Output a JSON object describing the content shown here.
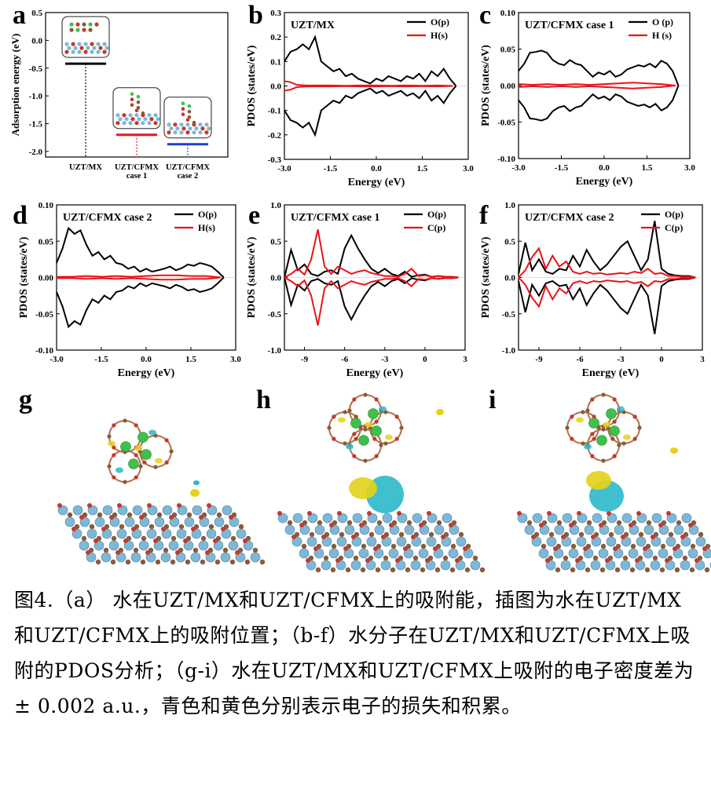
{
  "caption": "图4.（a） 水在UZT/MX和UZT/CFMX上的吸附能，插图为水在UZT/MX和UZT/CFMX上的吸附位置；（b-f）水分子在UZT/MX和UZT/CFMX上吸附的PDOS分析；（g-i）水在UZT/MX和UZT/CFMX上吸附的电子密度差为± 0.002 a.u.，青色和黄色分别表示电子的损失和积累。",
  "colors": {
    "black": "#000000",
    "red": "#e8141a",
    "blue": "#1f3fd1",
    "cyan": "#2bb8c9",
    "yellow": "#e6d21a"
  },
  "panels": {
    "a": "a",
    "b": "b",
    "c": "c",
    "d": "d",
    "e": "e",
    "f": "f",
    "g": "g",
    "h": "h",
    "i": "i"
  },
  "chart_data": [
    {
      "id": "a",
      "type": "scatter",
      "title": "",
      "ylabel": "Adsorption energy (eV)",
      "ylim": [
        -2.1,
        0.5
      ],
      "yticks": [
        "0.5",
        "0.0",
        "-0.5",
        "-1.0",
        "-1.5",
        "-2.0"
      ],
      "categories": [
        "UZT/MX",
        "UZT/CFMX case 1",
        "UZT/CFMX case 2"
      ],
      "category_lines": [
        [
          "UZT/MX"
        ],
        [
          "UZT/CFMX",
          "case 1"
        ],
        [
          "UZT/CFMX",
          "case 2"
        ]
      ],
      "values": [
        -0.42,
        -1.7,
        -1.87
      ],
      "colors": [
        "#000000",
        "#e8141a",
        "#1f3fd1"
      ]
    },
    {
      "id": "b",
      "type": "line",
      "title": "UZT/MX",
      "xlabel": "Energy (eV)",
      "ylabel": "PDOS (states/eV)",
      "xlim": [
        -3.0,
        3.0
      ],
      "ylim": [
        -0.3,
        0.3
      ],
      "xticks": [
        "-3.0",
        "-1.5",
        "0.0",
        "1.5",
        "3.0"
      ],
      "yticks": [
        "0.3",
        "0.2",
        "0.1",
        "0.0",
        "-0.1",
        "-0.2",
        "-0.3"
      ],
      "mirror": true,
      "series": [
        {
          "name": "O(p)",
          "color": "#000000",
          "x": [
            -3.0,
            -2.8,
            -2.6,
            -2.4,
            -2.2,
            -2.0,
            -1.8,
            -1.6,
            -1.4,
            -1.2,
            -1.0,
            -0.8,
            -0.6,
            -0.4,
            -0.2,
            0.0,
            0.2,
            0.4,
            0.6,
            0.8,
            1.0,
            1.2,
            1.4,
            1.6,
            1.8,
            2.0,
            2.2,
            2.4,
            2.6
          ],
          "y": [
            0.1,
            0.14,
            0.15,
            0.17,
            0.15,
            0.2,
            0.1,
            0.08,
            0.06,
            0.07,
            0.04,
            0.05,
            0.03,
            0.02,
            0.01,
            0.03,
            0.02,
            0.04,
            0.03,
            0.02,
            0.04,
            0.03,
            0.05,
            0.02,
            0.06,
            0.04,
            0.07,
            0.03,
            0.0
          ]
        },
        {
          "name": "H(s)",
          "color": "#e8141a",
          "x": [
            -3.0,
            -2.8,
            -2.6,
            -2.4,
            -2.2,
            -2.0,
            -1.5,
            -1.0,
            -0.5,
            0.0,
            0.5,
            1.0,
            1.5,
            2.0,
            2.5
          ],
          "y": [
            0.02,
            0.015,
            0.005,
            0.003,
            0.002,
            0.002,
            0.002,
            0.001,
            0.002,
            0.002,
            0.001,
            0.002,
            0.001,
            0.002,
            0.0
          ]
        }
      ]
    },
    {
      "id": "c",
      "type": "line",
      "title": "UZT/CFMX case 1",
      "xlabel": "Energy (eV)",
      "ylabel": "PDOS (states/eV)",
      "xlim": [
        -3.0,
        3.0
      ],
      "ylim": [
        -0.1,
        0.1
      ],
      "xticks": [
        "-3.0",
        "-1.5",
        "0.0",
        "1.5",
        "3.0"
      ],
      "yticks": [
        "0.10",
        "0.05",
        "0.00",
        "-0.05",
        "-0.10"
      ],
      "mirror": true,
      "series": [
        {
          "name": "O (p)",
          "color": "#000000",
          "x": [
            -3.0,
            -2.8,
            -2.6,
            -2.4,
            -2.2,
            -2.0,
            -1.8,
            -1.6,
            -1.4,
            -1.2,
            -1.0,
            -0.8,
            -0.6,
            -0.4,
            -0.2,
            0.0,
            0.2,
            0.4,
            0.6,
            0.8,
            1.0,
            1.2,
            1.4,
            1.6,
            1.8,
            2.0,
            2.2,
            2.4,
            2.6
          ],
          "y": [
            0.02,
            0.03,
            0.045,
            0.046,
            0.048,
            0.045,
            0.035,
            0.03,
            0.028,
            0.035,
            0.03,
            0.028,
            0.02,
            0.012,
            0.018,
            0.015,
            0.02,
            0.012,
            0.015,
            0.022,
            0.025,
            0.028,
            0.026,
            0.03,
            0.025,
            0.034,
            0.03,
            0.02,
            0.0
          ]
        },
        {
          "name": "H (s)",
          "color": "#e8141a",
          "x": [
            -3.0,
            -2.5,
            -2.0,
            -1.5,
            -1.0,
            -0.5,
            0.0,
            0.5,
            1.0,
            1.5,
            2.0,
            2.5
          ],
          "y": [
            0.002,
            0.001,
            0.002,
            0.001,
            0.002,
            0.001,
            0.002,
            0.003,
            0.004,
            0.003,
            0.002,
            0.0
          ]
        }
      ]
    },
    {
      "id": "d",
      "type": "line",
      "title": "UZT/CFMX case 2",
      "xlabel": "Energy (eV)",
      "ylabel": "PDOS (states/eV)",
      "xlim": [
        -3.0,
        3.0
      ],
      "ylim": [
        -0.1,
        0.1
      ],
      "xticks": [
        "-3.0",
        "-1.5",
        "0.0",
        "1.5",
        "3.0"
      ],
      "yticks": [
        "0.10",
        "0.05",
        "0.00",
        "-0.05",
        "-0.10"
      ],
      "mirror": true,
      "series": [
        {
          "name": "O(p)",
          "color": "#000000",
          "x": [
            -3.0,
            -2.8,
            -2.6,
            -2.4,
            -2.2,
            -2.0,
            -1.8,
            -1.6,
            -1.4,
            -1.2,
            -1.0,
            -0.8,
            -0.6,
            -0.4,
            -0.2,
            0.0,
            0.2,
            0.4,
            0.6,
            0.8,
            1.0,
            1.2,
            1.4,
            1.6,
            1.8,
            2.0,
            2.2,
            2.4,
            2.6
          ],
          "y": [
            0.02,
            0.04,
            0.068,
            0.06,
            0.065,
            0.045,
            0.03,
            0.035,
            0.025,
            0.03,
            0.02,
            0.018,
            0.012,
            0.015,
            0.008,
            0.012,
            0.008,
            0.01,
            0.012,
            0.015,
            0.01,
            0.013,
            0.018,
            0.016,
            0.02,
            0.018,
            0.015,
            0.008,
            0.0
          ]
        },
        {
          "name": "H(s)",
          "color": "#e8141a",
          "x": [
            -3.0,
            -2.5,
            -2.0,
            -1.5,
            -1.0,
            -0.5,
            0.0,
            0.5,
            1.0,
            1.5,
            2.0,
            2.5
          ],
          "y": [
            0.001,
            0.001,
            0.002,
            0.001,
            0.002,
            0.001,
            0.002,
            0.003,
            0.003,
            0.002,
            0.002,
            0.0
          ]
        }
      ]
    },
    {
      "id": "e",
      "type": "line",
      "title": "UZT/CFMX case 1",
      "xlabel": "Energy (eV)",
      "ylabel": "PDOS (states/eV)",
      "xlim": [
        -10.5,
        3.0
      ],
      "ylim": [
        -1.0,
        1.0
      ],
      "xticks": [
        "-9",
        "-6",
        "-3",
        "0",
        "3"
      ],
      "yticks": [
        "1.0",
        "0.5",
        "0.0",
        "-0.5",
        "-1.0"
      ],
      "mirror": true,
      "series": [
        {
          "name": "O(p)",
          "color": "#000000",
          "x": [
            -10.5,
            -10.0,
            -9.5,
            -9.0,
            -8.5,
            -8.0,
            -7.5,
            -7.0,
            -6.5,
            -6.0,
            -5.5,
            -5.0,
            -4.5,
            -4.0,
            -3.5,
            -3.0,
            -2.5,
            -2.0,
            -1.5,
            -1.0,
            -0.5,
            0.0,
            0.5,
            1.0,
            1.5,
            2.0,
            2.5
          ],
          "y": [
            0.0,
            0.38,
            0.1,
            0.18,
            0.05,
            0.02,
            0.08,
            0.1,
            0.05,
            0.4,
            0.58,
            0.4,
            0.25,
            0.12,
            0.06,
            0.12,
            0.05,
            0.02,
            0.08,
            0.01,
            0.03,
            0.04,
            0.01,
            0.02,
            0.01,
            0.01,
            0.0
          ]
        },
        {
          "name": "C(p)",
          "color": "#e8141a",
          "x": [
            -10.5,
            -10.0,
            -9.5,
            -9.0,
            -8.5,
            -8.0,
            -7.5,
            -7.0,
            -6.5,
            -6.0,
            -5.5,
            -5.0,
            -4.5,
            -4.0,
            -3.5,
            -3.0,
            -2.5,
            -2.0,
            -1.5,
            -1.0,
            -0.5,
            0.0,
            0.5,
            1.0,
            1.5,
            2.0,
            2.5
          ],
          "y": [
            0.0,
            0.05,
            0.12,
            0.04,
            0.25,
            0.66,
            0.15,
            0.05,
            0.15,
            0.1,
            0.05,
            0.08,
            0.1,
            0.06,
            0.04,
            0.02,
            0.02,
            0.01,
            0.05,
            0.12,
            0.02,
            0.03,
            0.01,
            0.02,
            0.01,
            0.01,
            0.0
          ]
        }
      ]
    },
    {
      "id": "f",
      "type": "line",
      "title": "UZT/CFMX case 2",
      "xlabel": "Energy (eV)",
      "ylabel": "PDOS (states/eV)",
      "xlim": [
        -10.5,
        3.0
      ],
      "ylim": [
        -1.0,
        1.0
      ],
      "xticks": [
        "-9",
        "-6",
        "-3",
        "0",
        "3"
      ],
      "yticks": [
        "1.0",
        "0.5",
        "0.0",
        "-0.5",
        "-1.0"
      ],
      "mirror": true,
      "series": [
        {
          "name": "O(p)",
          "color": "#000000",
          "x": [
            -10.5,
            -10.0,
            -9.5,
            -9.0,
            -8.5,
            -8.0,
            -7.5,
            -7.0,
            -6.5,
            -6.0,
            -5.5,
            -5.0,
            -4.5,
            -4.0,
            -3.5,
            -3.0,
            -2.5,
            -2.0,
            -1.5,
            -1.0,
            -0.5,
            0.0,
            0.5,
            1.0,
            1.5,
            2.0,
            2.5
          ],
          "y": [
            0.05,
            0.48,
            0.1,
            0.25,
            0.08,
            0.05,
            0.12,
            0.1,
            0.3,
            0.15,
            0.38,
            0.22,
            0.1,
            0.18,
            0.3,
            0.42,
            0.5,
            0.3,
            0.1,
            0.25,
            0.78,
            0.12,
            0.05,
            0.03,
            0.02,
            0.02,
            0.0
          ]
        },
        {
          "name": "C(p)",
          "color": "#e8141a",
          "x": [
            -10.5,
            -10.0,
            -9.5,
            -9.0,
            -8.5,
            -8.0,
            -7.5,
            -7.0,
            -6.5,
            -6.0,
            -5.5,
            -5.0,
            -4.5,
            -4.0,
            -3.5,
            -3.0,
            -2.5,
            -2.0,
            -1.5,
            -1.0,
            -0.5,
            0.0,
            0.5,
            1.0,
            1.5,
            2.0,
            2.5
          ],
          "y": [
            0.0,
            0.1,
            0.28,
            0.4,
            0.12,
            0.3,
            0.15,
            0.22,
            0.08,
            0.05,
            0.08,
            0.05,
            0.06,
            0.04,
            0.05,
            0.06,
            0.05,
            0.08,
            0.06,
            0.12,
            0.05,
            0.06,
            0.02,
            0.02,
            0.01,
            0.01,
            0.0
          ]
        }
      ]
    }
  ]
}
